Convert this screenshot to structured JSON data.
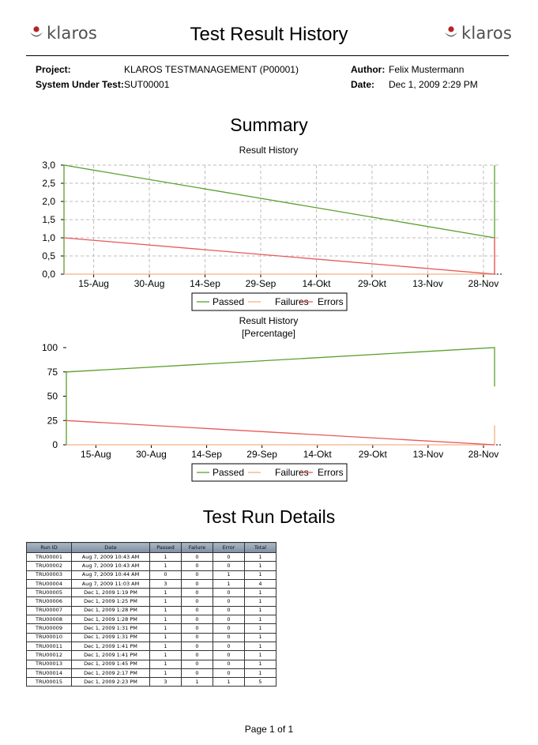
{
  "header": {
    "logo_text": "klaros",
    "title": "Test Result History"
  },
  "meta": {
    "project_label": "Project:",
    "project_value": "KLAROS TESTMANAGEMENT (P00001)",
    "sut_label": "System Under Test:",
    "sut_value": "SUT00001",
    "author_label": "Author:",
    "author_value": "Felix Mustermann",
    "date_label": "Date:",
    "date_value": "Dec 1, 2009 2:29 PM"
  },
  "summary_title": "Summary",
  "colors": {
    "passed": "#5aa02c",
    "failures": "#f4b183",
    "errors": "#e8595a",
    "grid": "#bdbdbd"
  },
  "chart_data": [
    {
      "type": "line",
      "title": "Result History",
      "subtitle": "",
      "x_ticks": [
        "15-Aug",
        "30-Aug",
        "14-Sep",
        "29-Sep",
        "14-Okt",
        "29-Okt",
        "13-Nov",
        "28-Nov"
      ],
      "y_ticks": [
        "0,0",
        "0,5",
        "1,0",
        "1,5",
        "2,0",
        "2,5",
        "3,0"
      ],
      "ylim": [
        0,
        3
      ],
      "xlim": [
        "2009-08-07",
        "2009-12-01"
      ],
      "grid": true,
      "legend_placement": "bottom",
      "series": [
        {
          "name": "Passed",
          "x": [
            "2009-08-07",
            "2009-08-07",
            "2009-12-01",
            "2009-12-01"
          ],
          "y": [
            0,
            3,
            1,
            3
          ]
        },
        {
          "name": "Failures",
          "x": [
            "2009-08-07",
            "2009-12-01",
            "2009-12-01"
          ],
          "y": [
            0,
            0,
            1
          ]
        },
        {
          "name": "Errors",
          "x": [
            "2009-08-07",
            "2009-12-01",
            "2009-12-01"
          ],
          "y": [
            1,
            0,
            1
          ]
        }
      ]
    },
    {
      "type": "line",
      "title": "Result History",
      "subtitle": "[Percentage]",
      "x_ticks": [
        "15-Aug",
        "30-Aug",
        "14-Sep",
        "29-Sep",
        "14-Okt",
        "29-Okt",
        "13-Nov",
        "28-Nov"
      ],
      "y_ticks": [
        "0",
        "25",
        "50",
        "75",
        "100"
      ],
      "ylim": [
        0,
        100
      ],
      "xlim": [
        "2009-08-07",
        "2009-12-01"
      ],
      "grid": false,
      "legend_placement": "bottom",
      "series": [
        {
          "name": "Passed",
          "x": [
            "2009-08-07",
            "2009-08-07",
            "2009-12-01",
            "2009-12-01"
          ],
          "y": [
            0,
            75,
            100,
            60
          ]
        },
        {
          "name": "Failures",
          "x": [
            "2009-08-07",
            "2009-12-01",
            "2009-12-01"
          ],
          "y": [
            0,
            0,
            20
          ]
        },
        {
          "name": "Errors",
          "x": [
            "2009-08-07",
            "2009-12-01"
          ],
          "y": [
            25,
            0
          ]
        }
      ]
    }
  ],
  "details_title": "Test Run Details",
  "table": {
    "headers": [
      "Run ID",
      "Date",
      "Passed",
      "Failure",
      "Error",
      "Total"
    ],
    "rows": [
      [
        "TRU00001",
        "Aug 7, 2009 10:43 AM",
        "1",
        "0",
        "0",
        "1"
      ],
      [
        "TRU00002",
        "Aug 7, 2009 10:43 AM",
        "1",
        "0",
        "0",
        "1"
      ],
      [
        "TRU00003",
        "Aug 7, 2009 10:44 AM",
        "0",
        "0",
        "1",
        "1"
      ],
      [
        "TRU00004",
        "Aug 7, 2009 11:03 AM",
        "3",
        "0",
        "1",
        "4"
      ],
      [
        "TRU00005",
        "Dec 1, 2009 1:19 PM",
        "1",
        "0",
        "0",
        "1"
      ],
      [
        "TRU00006",
        "Dec 1, 2009 1:25 PM",
        "1",
        "0",
        "0",
        "1"
      ],
      [
        "TRU00007",
        "Dec 1, 2009 1:28 PM",
        "1",
        "0",
        "0",
        "1"
      ],
      [
        "TRU00008",
        "Dec 1, 2009 1:28 PM",
        "1",
        "0",
        "0",
        "1"
      ],
      [
        "TRU00009",
        "Dec 1, 2009 1:31 PM",
        "1",
        "0",
        "0",
        "1"
      ],
      [
        "TRU00010",
        "Dec 1, 2009 1:31 PM",
        "1",
        "0",
        "0",
        "1"
      ],
      [
        "TRU00011",
        "Dec 1, 2009 1:41 PM",
        "1",
        "0",
        "0",
        "1"
      ],
      [
        "TRU00012",
        "Dec 1, 2009 1:41 PM",
        "1",
        "0",
        "0",
        "1"
      ],
      [
        "TRU00013",
        "Dec 1, 2009 1:45 PM",
        "1",
        "0",
        "0",
        "1"
      ],
      [
        "TRU00014",
        "Dec 1, 2009 2:17 PM",
        "1",
        "0",
        "0",
        "1"
      ],
      [
        "TRU00015",
        "Dec 1, 2009 2:23 PM",
        "3",
        "1",
        "1",
        "5"
      ]
    ]
  },
  "footer": {
    "page_text": "Page 1 of 1"
  }
}
